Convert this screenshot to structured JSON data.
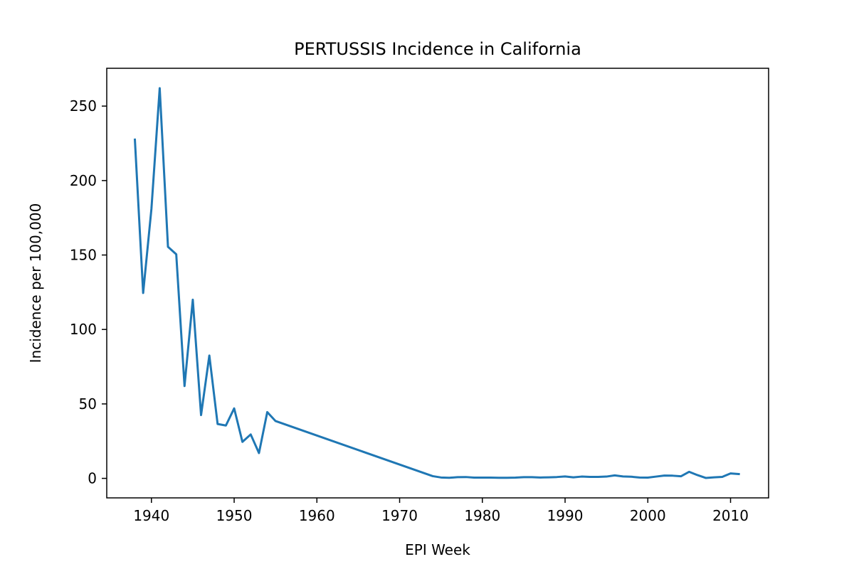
{
  "chart_data": {
    "type": "line",
    "title": "PERTUSSIS Incidence in California",
    "xlabel": "EPI Week",
    "ylabel": "Incidence per 100,000",
    "xlim": [
      1934.6,
      2014.6
    ],
    "ylim": [
      -13.1,
      275.4
    ],
    "x_ticks": [
      1940,
      1950,
      1960,
      1970,
      1980,
      1990,
      2000,
      2010
    ],
    "y_ticks": [
      0,
      50,
      100,
      150,
      200,
      250
    ],
    "grid": false,
    "legend": "none",
    "series": [
      {
        "color": "#1f77b4",
        "x": [
          1938,
          1939,
          1940,
          1941,
          1942,
          1943,
          1944,
          1945,
          1946,
          1947,
          1948,
          1949,
          1950,
          1951,
          1952,
          1953,
          1954,
          1955,
          1974,
          1975,
          1976,
          1977,
          1978,
          1979,
          1980,
          1981,
          1982,
          1983,
          1984,
          1985,
          1986,
          1987,
          1988,
          1989,
          1990,
          1991,
          1992,
          1993,
          1994,
          1995,
          1996,
          1997,
          1998,
          1999,
          2000,
          2001,
          2002,
          2003,
          2004,
          2005,
          2006,
          2007,
          2008,
          2009,
          2010,
          2011
        ],
        "y": [
          227.5,
          124.5,
          181.0,
          262.0,
          155.5,
          150.5,
          62.0,
          120.0,
          42.5,
          82.5,
          36.5,
          35.5,
          47.0,
          24.5,
          29.5,
          17.0,
          44.5,
          38.5,
          1.5,
          0.6,
          0.4,
          0.8,
          0.9,
          0.5,
          0.5,
          0.5,
          0.4,
          0.4,
          0.5,
          0.8,
          0.8,
          0.6,
          0.7,
          0.9,
          1.3,
          0.7,
          1.2,
          1.0,
          1.0,
          1.2,
          2.0,
          1.3,
          1.1,
          0.6,
          0.5,
          1.2,
          1.9,
          1.8,
          1.4,
          4.4,
          2.2,
          0.3,
          0.7,
          1.0,
          3.3,
          2.9
        ]
      }
    ]
  }
}
